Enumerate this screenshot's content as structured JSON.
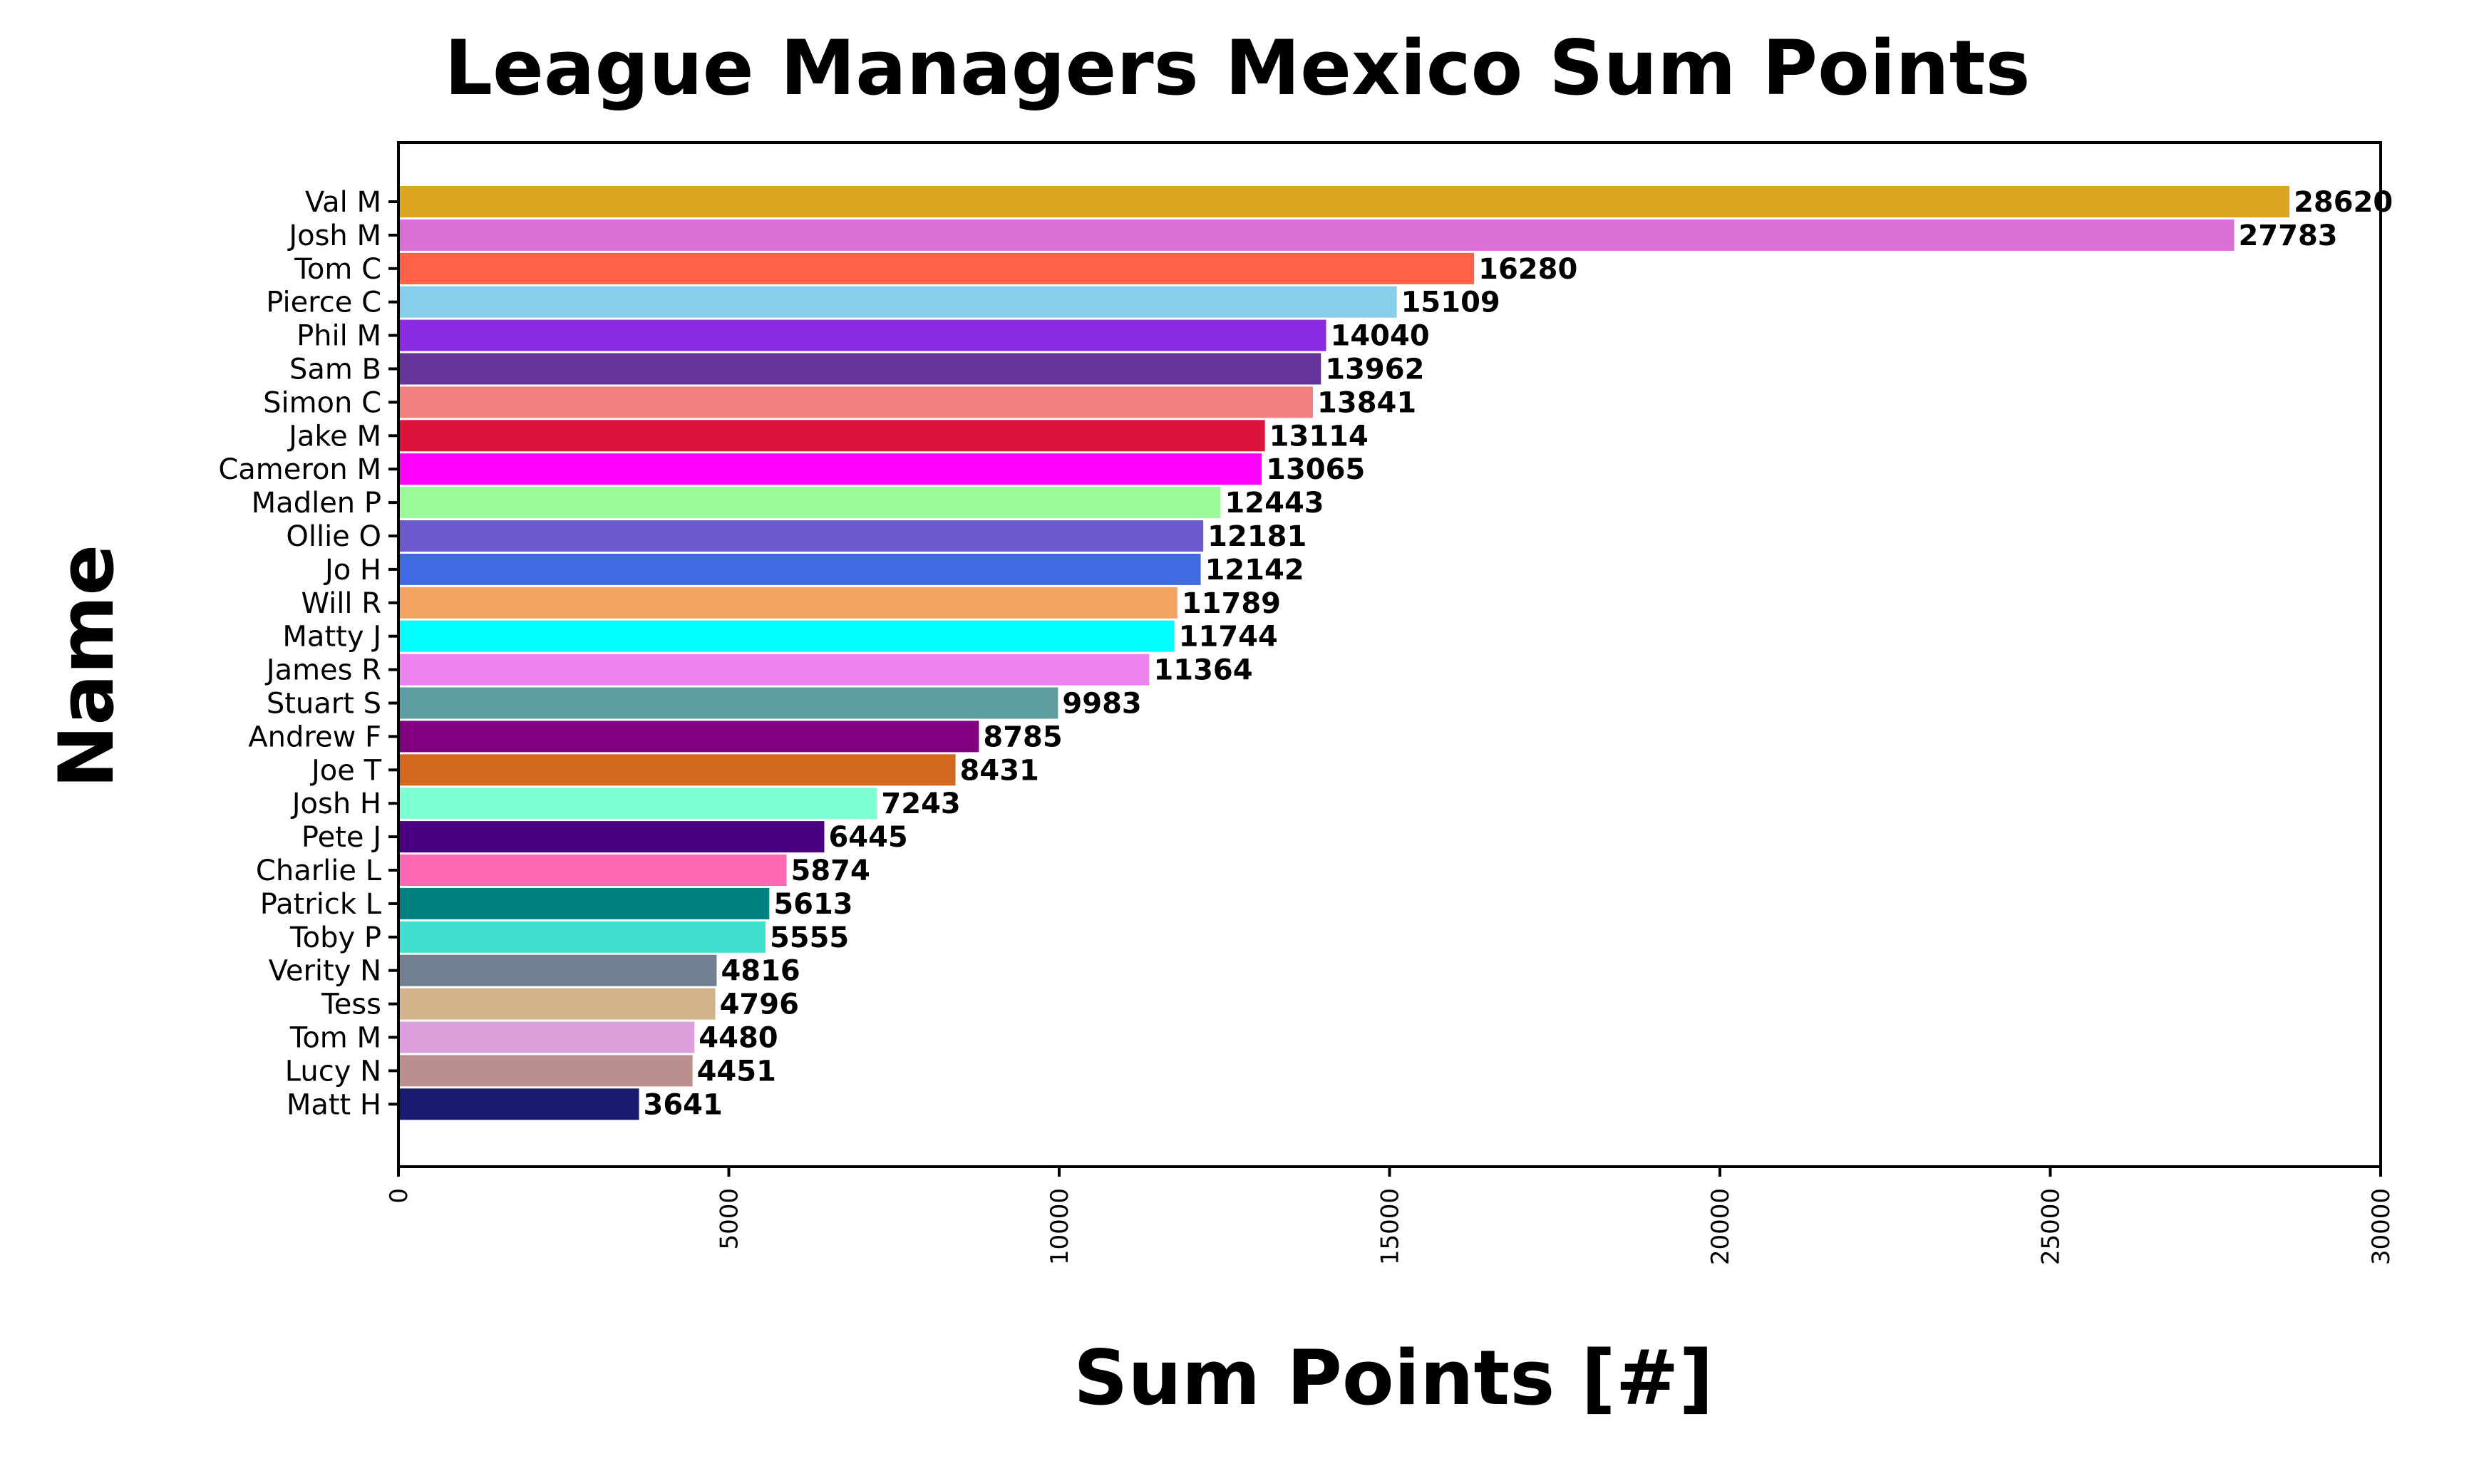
{
  "chart_data": {
    "type": "bar",
    "orientation": "horizontal",
    "title": "League Managers Mexico Sum Points",
    "xlabel": "Sum Points [#]",
    "ylabel": "Name",
    "xlim": [
      0,
      30000
    ],
    "xticks": [
      "0",
      "5000",
      "10000",
      "15000",
      "20000",
      "25000",
      "30000"
    ],
    "grid": false,
    "categories": [
      "Val M",
      "Josh M",
      "Tom C",
      "Pierce C",
      "Phil M",
      "Sam B",
      "Simon C",
      "Jake M",
      "Cameron M",
      "Madlen P",
      "Ollie O",
      "Jo H",
      "Will R",
      "Matty J",
      "James R",
      "Stuart S",
      "Andrew F",
      "Joe T",
      "Josh H",
      "Pete J",
      "Charlie L",
      "Patrick L",
      "Toby P",
      "Verity N",
      "Tess",
      "Tom M",
      "Lucy N",
      "Matt H"
    ],
    "values": [
      28620,
      27783,
      16280,
      15109,
      14040,
      13962,
      13841,
      13114,
      13065,
      12443,
      12181,
      12142,
      11789,
      11744,
      11364,
      9983,
      8785,
      8431,
      7243,
      6445,
      5874,
      5613,
      5555,
      4816,
      4796,
      4480,
      4451,
      3641
    ],
    "colors": [
      "#DAA520",
      "#DA70D6",
      "#FF6347",
      "#87CEEB",
      "#8A2BE2",
      "#663399",
      "#F08080",
      "#DC143C",
      "#FF00FF",
      "#98FB98",
      "#6A5ACD",
      "#4169E1",
      "#F4A460",
      "#00FFFF",
      "#EE82EE",
      "#5F9EA0",
      "#800080",
      "#D2691E",
      "#7FFFD4",
      "#4B0082",
      "#FF69B4",
      "#008080",
      "#40E0D0",
      "#708090",
      "#D2B48C",
      "#DDA0DD",
      "#BC8F8F",
      "#191970"
    ]
  }
}
